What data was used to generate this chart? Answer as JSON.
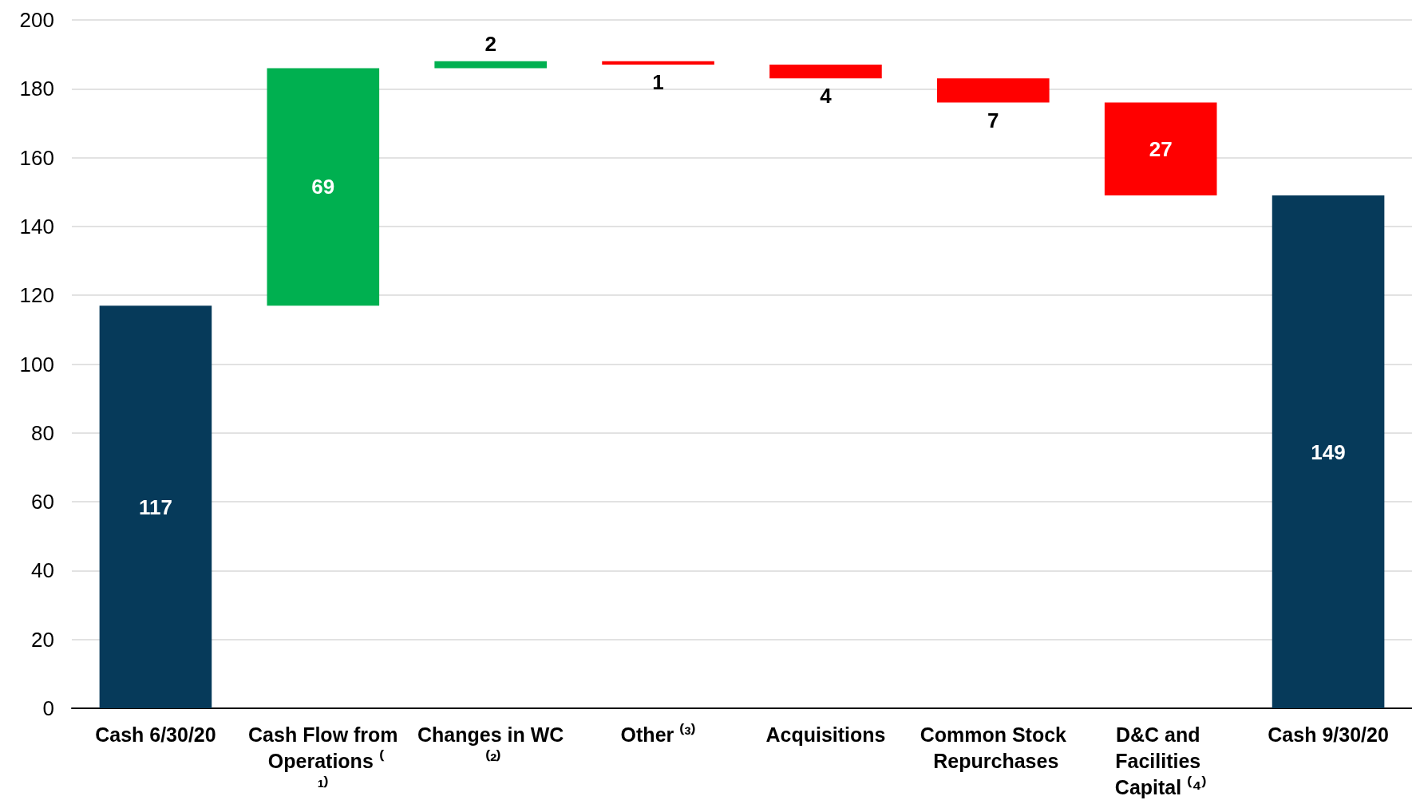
{
  "chart_data": {
    "type": "bar",
    "categories": [
      "Cash 6/30/20",
      "Cash Flow from Operations ⁽¹⁾",
      "Changes in WC ⁽²⁾",
      "Other ⁽³⁾",
      "Acquisitions",
      "Common Stock Repurchases",
      "D&C and Facilities Capital ⁽⁴⁾",
      "Cash 9/30/20"
    ],
    "values": [
      117,
      69,
      2,
      -1,
      -4,
      -7,
      -27,
      149
    ],
    "base": [
      0,
      117,
      186,
      188,
      187,
      183,
      176,
      0
    ],
    "colors": [
      "#063a5a",
      "#00b050",
      "#00b050",
      "#ff0000",
      "#ff0000",
      "#ff0000",
      "#ff0000",
      "#063a5a"
    ],
    "value_labels": [
      "117",
      "69",
      "2",
      "1",
      "4",
      "7",
      "27",
      "149"
    ],
    "ylim": [
      0,
      200
    ],
    "yticks": [
      0,
      20,
      40,
      60,
      80,
      100,
      120,
      140,
      160,
      180,
      200
    ],
    "grid": "y"
  }
}
